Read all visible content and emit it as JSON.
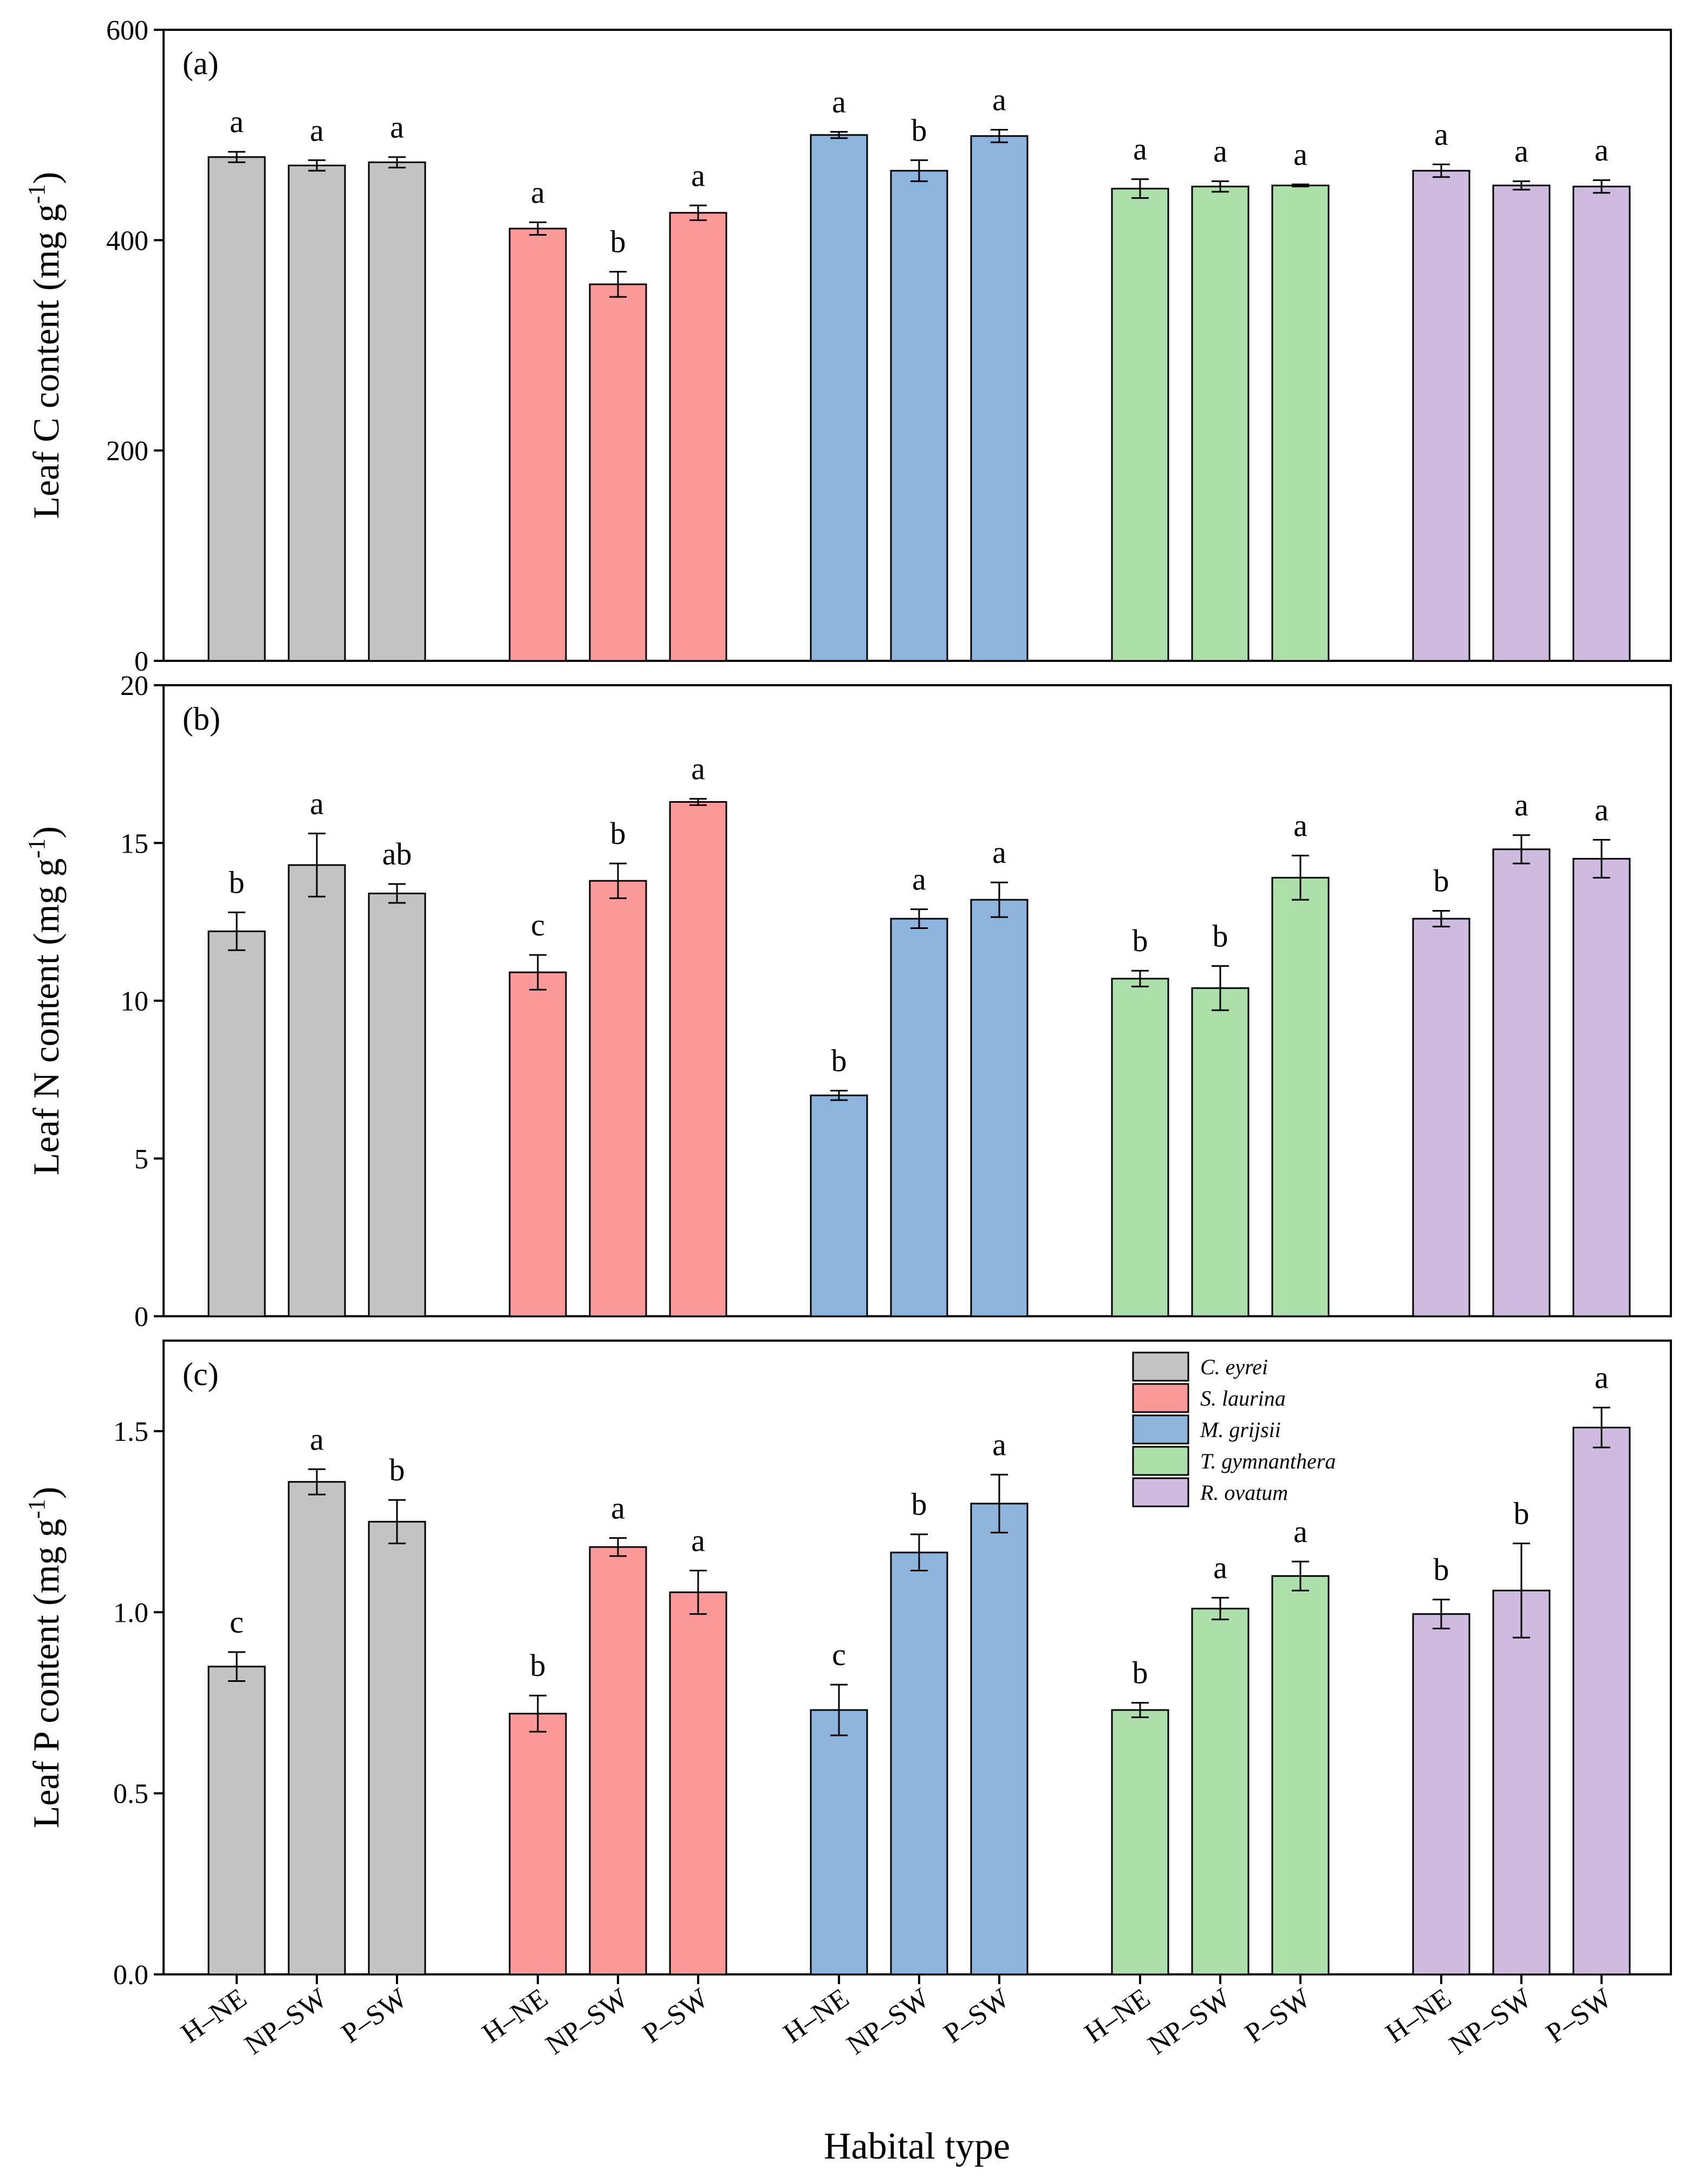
{
  "chart_data": {
    "type": "bar",
    "xlabel": "Habital type",
    "species": [
      {
        "name": "C. eyrei",
        "color": "#c3c3c3"
      },
      {
        "name": "S. laurina",
        "color": "#fb9a99"
      },
      {
        "name": "M. grijsii",
        "color": "#8db4dd"
      },
      {
        "name": "T. gymnanthera",
        "color": "#addfaa"
      },
      {
        "name": "R. ovatum",
        "color": "#cebbdf"
      }
    ],
    "categories": [
      "H–NE",
      "NP–SW",
      "P–SW"
    ],
    "panels": [
      {
        "label": "(a)",
        "ylabel": "Leaf C content (mg g",
        "ylabel_sup": "-1",
        "ylabel_close": ")",
        "ylim": [
          0,
          600
        ],
        "yticks": [
          0,
          200,
          400,
          600
        ],
        "ytick_labels": [
          "0",
          "200",
          "400",
          "600"
        ],
        "series": [
          {
            "species": "C. eyrei",
            "values": [
              479,
              471,
              474
            ],
            "errors": [
              5,
              5,
              5
            ],
            "sig": [
              "a",
              "a",
              "a"
            ]
          },
          {
            "species": "S. laurina",
            "values": [
              411,
              358,
              426
            ],
            "errors": [
              6,
              12,
              7
            ],
            "sig": [
              "a",
              "b",
              "a"
            ]
          },
          {
            "species": "M. grijsii",
            "values": [
              500,
              466,
              499
            ],
            "errors": [
              3,
              10,
              6
            ],
            "sig": [
              "a",
              "b",
              "a"
            ]
          },
          {
            "species": "T. gymnanthera",
            "values": [
              449,
              451,
              452
            ],
            "errors": [
              9,
              5,
              1
            ],
            "sig": [
              "a",
              "a",
              "a"
            ]
          },
          {
            "species": "R. ovatum",
            "values": [
              466,
              452,
              451
            ],
            "errors": [
              6,
              4,
              6
            ],
            "sig": [
              "a",
              "a",
              "a"
            ]
          }
        ]
      },
      {
        "label": "(b)",
        "ylabel": "Leaf N content (mg g",
        "ylabel_sup": "-1",
        "ylabel_close": ")",
        "ylim": [
          0,
          20
        ],
        "yticks": [
          0,
          5,
          10,
          15,
          20
        ],
        "ytick_labels": [
          "0",
          "5",
          "10",
          "15",
          "20"
        ],
        "series": [
          {
            "species": "C. eyrei",
            "values": [
              12.2,
              14.3,
              13.4
            ],
            "errors": [
              0.6,
              1.0,
              0.3
            ],
            "sig": [
              "b",
              "a",
              "ab"
            ]
          },
          {
            "species": "S. laurina",
            "values": [
              10.9,
              13.8,
              16.3
            ],
            "errors": [
              0.55,
              0.55,
              0.1
            ],
            "sig": [
              "c",
              "b",
              "a"
            ]
          },
          {
            "species": "M. grijsii",
            "values": [
              7.0,
              12.6,
              13.2
            ],
            "errors": [
              0.15,
              0.3,
              0.55
            ],
            "sig": [
              "b",
              "a",
              "a"
            ]
          },
          {
            "species": "T. gymnanthera",
            "values": [
              10.7,
              10.4,
              13.9
            ],
            "errors": [
              0.25,
              0.7,
              0.7
            ],
            "sig": [
              "b",
              "b",
              "a"
            ]
          },
          {
            "species": "R. ovatum",
            "values": [
              12.6,
              14.8,
              14.5
            ],
            "errors": [
              0.25,
              0.45,
              0.6
            ],
            "sig": [
              "b",
              "a",
              "a"
            ]
          }
        ]
      },
      {
        "label": "(c)",
        "ylabel": "Leaf P content (mg g",
        "ylabel_sup": "-1",
        "ylabel_close": ")",
        "ylim": [
          0,
          1.75
        ],
        "yticks": [
          0,
          0.5,
          1.0,
          1.5
        ],
        "ytick_labels": [
          "0.0",
          "0.5",
          "1.0",
          "1.5"
        ],
        "series": [
          {
            "species": "C. eyrei",
            "values": [
              0.85,
              1.36,
              1.25
            ],
            "errors": [
              0.04,
              0.035,
              0.06
            ],
            "sig": [
              "c",
              "a",
              "b"
            ]
          },
          {
            "species": "S. laurina",
            "values": [
              0.72,
              1.18,
              1.055
            ],
            "errors": [
              0.05,
              0.025,
              0.06
            ],
            "sig": [
              "b",
              "a",
              "a"
            ]
          },
          {
            "species": "M. grijsii",
            "values": [
              0.73,
              1.165,
              1.3
            ],
            "errors": [
              0.07,
              0.05,
              0.08
            ],
            "sig": [
              "c",
              "b",
              "a"
            ]
          },
          {
            "species": "T. gymnanthera",
            "values": [
              0.73,
              1.01,
              1.1
            ],
            "errors": [
              0.02,
              0.03,
              0.04
            ],
            "sig": [
              "b",
              "a",
              "a"
            ]
          },
          {
            "species": "R. ovatum",
            "values": [
              0.995,
              1.06,
              1.51
            ],
            "errors": [
              0.04,
              0.13,
              0.055
            ],
            "sig": [
              "b",
              "b",
              "a"
            ]
          }
        ]
      }
    ],
    "legend": {
      "placement": "top-right of panel (c)",
      "panel": 2
    },
    "grid": false
  }
}
